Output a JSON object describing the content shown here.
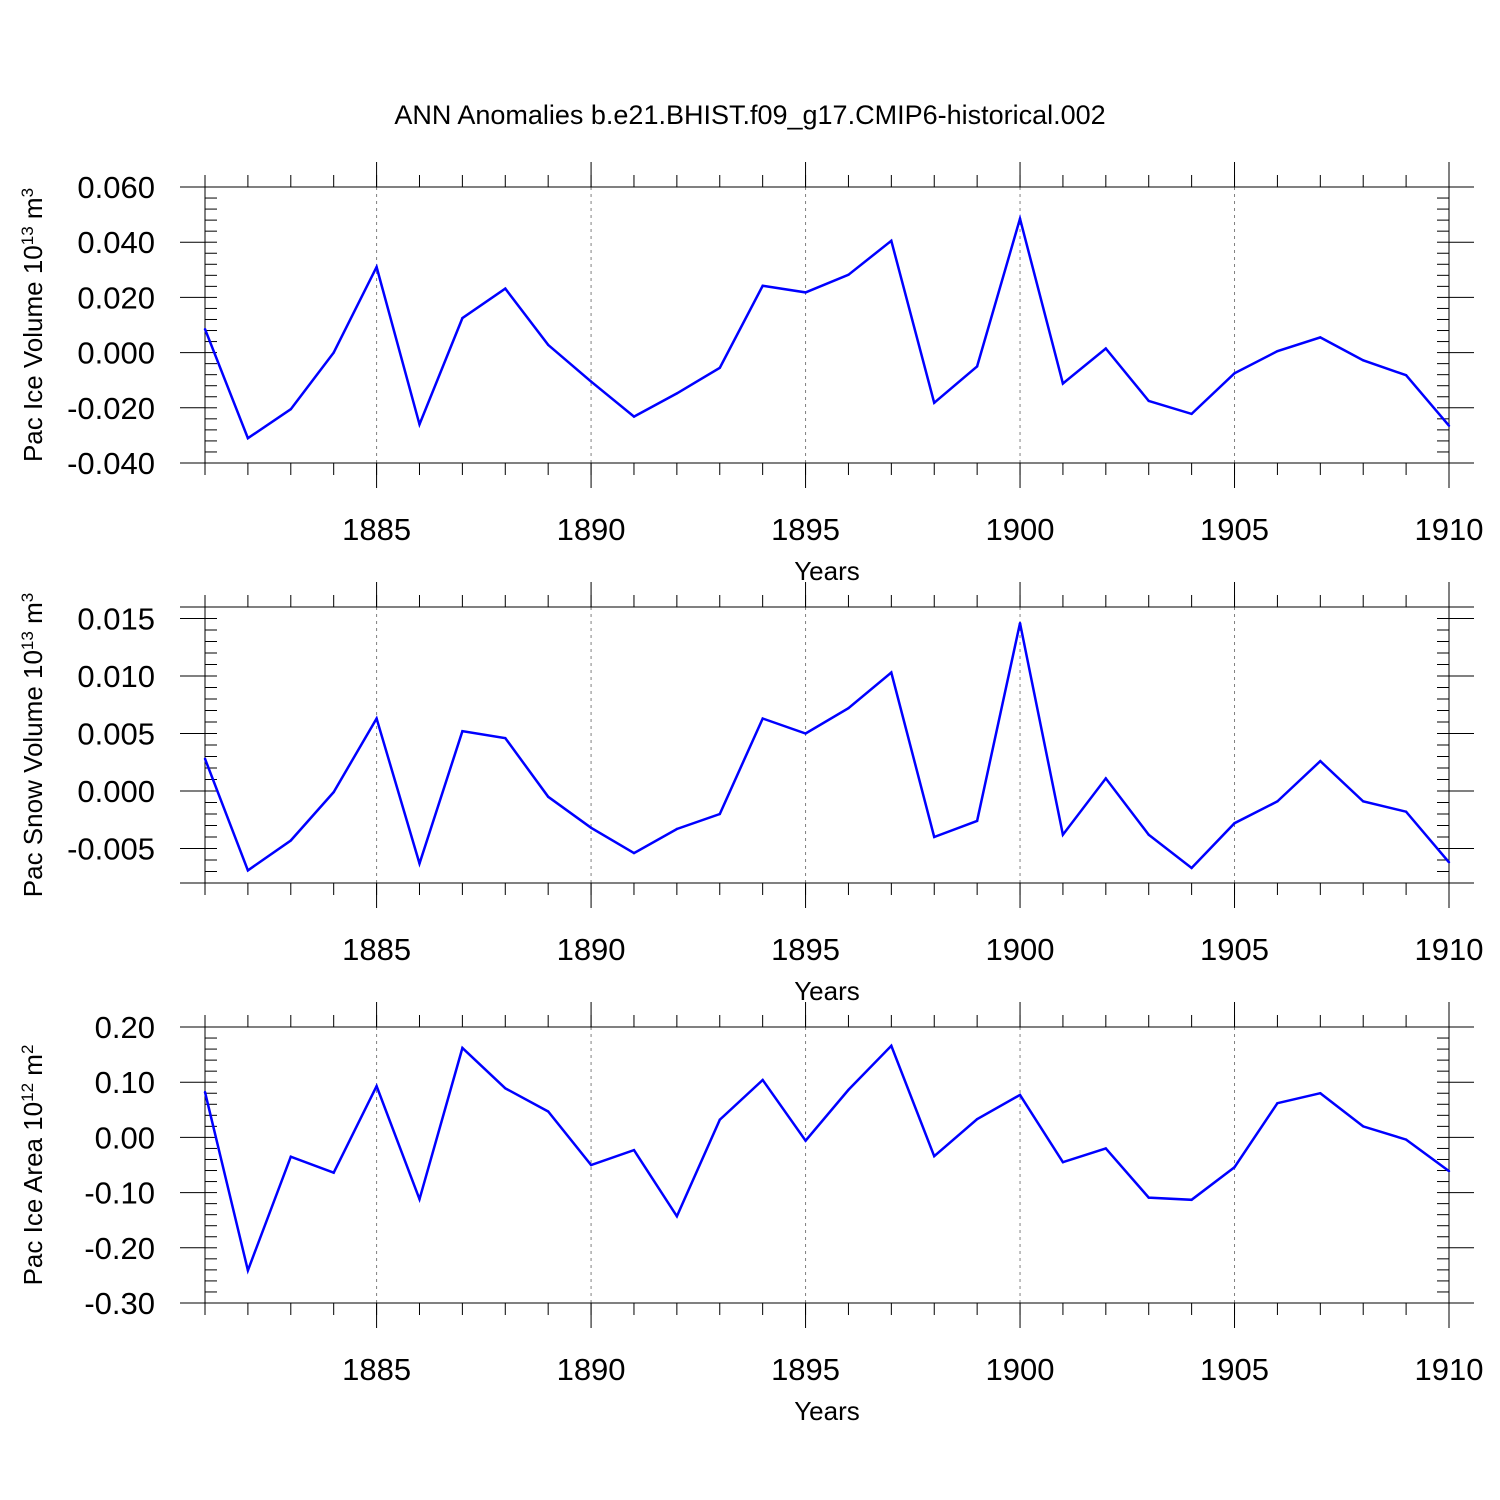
{
  "title": "ANN Anomalies b.e21.BHIST.f09_g17.CMIP6-historical.002",
  "line_color": "#0000ff",
  "chart_data": [
    {
      "type": "line",
      "ylabel": {
        "main": "Pac Ice Volume 10",
        "exp": "13",
        "unit": " m",
        "unit_exp": "3"
      },
      "xlabel": "Years",
      "xlim": [
        1881,
        1910
      ],
      "ylim": [
        -0.04,
        0.06
      ],
      "yticks": [
        -0.04,
        -0.02,
        0.0,
        0.02,
        0.04,
        0.06
      ],
      "ytick_labels": [
        "-0.040",
        "-0.020",
        "0.000",
        "0.020",
        "0.040",
        "0.060"
      ],
      "xticks": [
        1885,
        1890,
        1895,
        1900,
        1905,
        1910
      ],
      "xtick_labels": [
        "1885",
        "1890",
        "1895",
        "1900",
        "1905",
        "1910"
      ],
      "grid": "vertical dashed at major x ticks",
      "series": [
        {
          "x": [
            1881,
            1882,
            1883,
            1884,
            1885,
            1886,
            1887,
            1888,
            1889,
            1890,
            1891,
            1892,
            1893,
            1894,
            1895,
            1896,
            1897,
            1898,
            1899,
            1900,
            1901,
            1902,
            1903,
            1904,
            1905,
            1906,
            1907,
            1908,
            1909,
            1910
          ],
          "values": [
            0.0085,
            -0.031,
            -0.0205,
            0.0,
            0.031,
            -0.026,
            0.0125,
            0.0232,
            0.0028,
            -0.0105,
            -0.0232,
            -0.0148,
            -0.0055,
            0.0242,
            0.0218,
            0.0282,
            0.0405,
            -0.0182,
            -0.005,
            0.0485,
            -0.0112,
            0.0015,
            -0.0175,
            -0.0222,
            -0.0075,
            0.0005,
            0.0055,
            -0.0028,
            -0.0082,
            -0.0265
          ]
        }
      ]
    },
    {
      "type": "line",
      "ylabel": {
        "main": "Pac Snow Volume 10",
        "exp": "13",
        "unit": " m",
        "unit_exp": "3"
      },
      "xlabel": "Years",
      "xlim": [
        1881,
        1910
      ],
      "ylim": [
        -0.008,
        0.016
      ],
      "yticks": [
        -0.005,
        0.0,
        0.005,
        0.01,
        0.015
      ],
      "ytick_labels": [
        "-0.005",
        "0.000",
        "0.005",
        "0.010",
        "0.015"
      ],
      "xticks": [
        1885,
        1890,
        1895,
        1900,
        1905,
        1910
      ],
      "xtick_labels": [
        "1885",
        "1890",
        "1895",
        "1900",
        "1905",
        "1910"
      ],
      "grid": "vertical dashed at major x ticks",
      "series": [
        {
          "x": [
            1881,
            1882,
            1883,
            1884,
            1885,
            1886,
            1887,
            1888,
            1889,
            1890,
            1891,
            1892,
            1893,
            1894,
            1895,
            1896,
            1897,
            1898,
            1899,
            1900,
            1901,
            1902,
            1903,
            1904,
            1905,
            1906,
            1907,
            1908,
            1909,
            1910
          ],
          "values": [
            0.0028,
            -0.0069,
            -0.0043,
            -0.0001,
            0.0063,
            -0.0063,
            0.0052,
            0.0046,
            -0.0005,
            -0.0032,
            -0.0054,
            -0.0033,
            -0.002,
            0.0063,
            0.005,
            0.0072,
            0.0103,
            -0.004,
            -0.0026,
            0.0146,
            -0.0038,
            0.0011,
            -0.0038,
            -0.0067,
            -0.0028,
            -0.0009,
            0.0026,
            -0.0009,
            -0.0018,
            -0.0062
          ]
        }
      ]
    },
    {
      "type": "line",
      "ylabel": {
        "main": "Pac Ice Area 10",
        "exp": "12",
        "unit": " m",
        "unit_exp": "2"
      },
      "xlabel": "Years",
      "xlim": [
        1881,
        1910
      ],
      "ylim": [
        -0.3,
        0.2
      ],
      "yticks": [
        -0.3,
        -0.2,
        -0.1,
        0.0,
        0.1,
        0.2
      ],
      "ytick_labels": [
        "-0.30",
        "-0.20",
        "-0.10",
        "0.00",
        "0.10",
        "0.20"
      ],
      "xticks": [
        1885,
        1890,
        1895,
        1900,
        1905,
        1910
      ],
      "xtick_labels": [
        "1885",
        "1890",
        "1895",
        "1900",
        "1905",
        "1910"
      ],
      "grid": "vertical dashed at major x ticks",
      "series": [
        {
          "x": [
            1881,
            1882,
            1883,
            1884,
            1885,
            1886,
            1887,
            1888,
            1889,
            1890,
            1891,
            1892,
            1893,
            1894,
            1895,
            1896,
            1897,
            1898,
            1899,
            1900,
            1901,
            1902,
            1903,
            1904,
            1905,
            1906,
            1907,
            1908,
            1909,
            1910
          ],
          "values": [
            0.082,
            -0.241,
            -0.035,
            -0.064,
            0.093,
            -0.112,
            0.162,
            0.089,
            0.047,
            -0.05,
            -0.023,
            -0.143,
            0.032,
            0.104,
            -0.006,
            0.086,
            0.166,
            -0.034,
            0.033,
            0.077,
            -0.045,
            -0.02,
            -0.109,
            -0.113,
            -0.054,
            0.062,
            0.08,
            0.02,
            -0.004,
            -0.061
          ]
        }
      ]
    }
  ]
}
